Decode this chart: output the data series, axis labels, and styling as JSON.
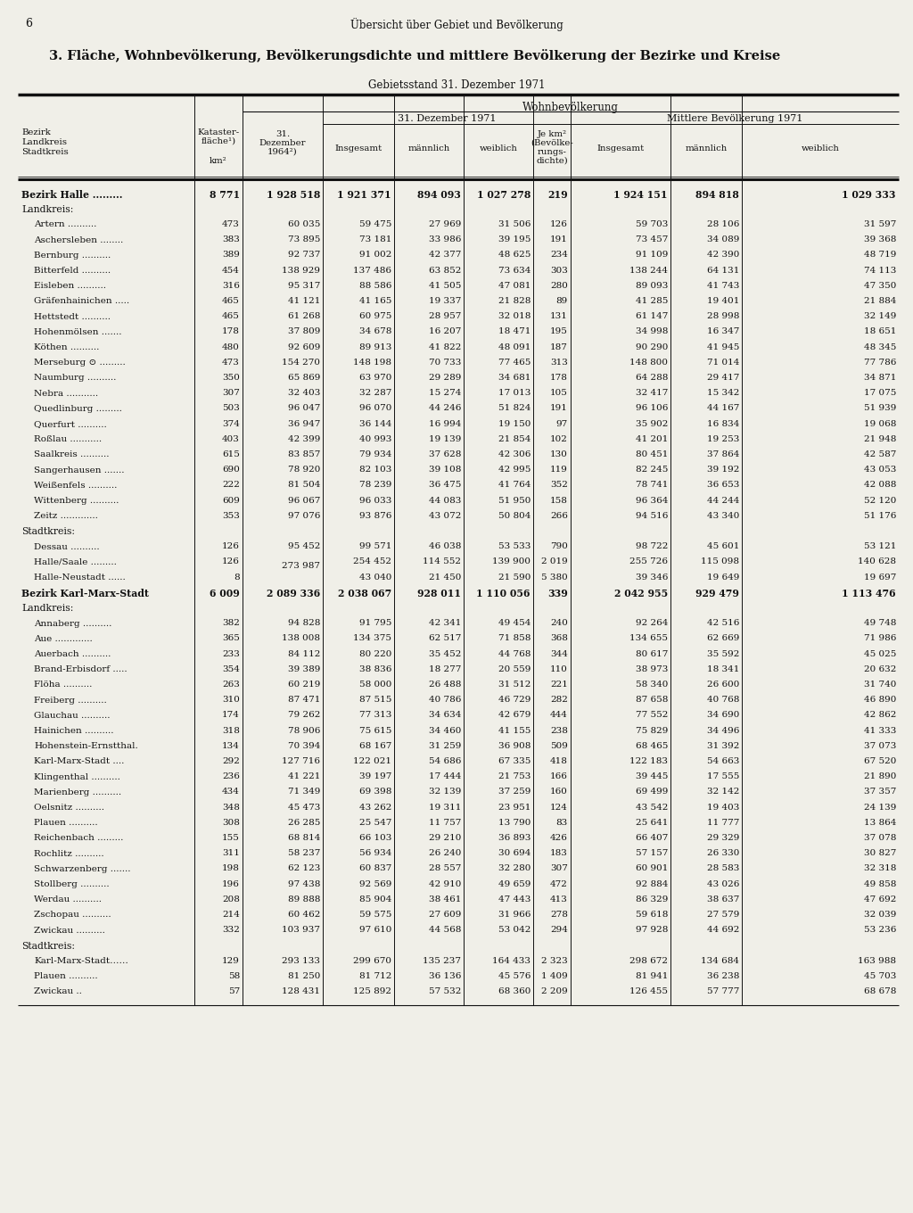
{
  "page_number": "6",
  "header": "Übersicht über Gebiet und Bevölkerung",
  "title": "3. Fläche, Wohnbevölkerung, Bevölkerungsdichte und mittlere Bevölkerung der Bezirke und Kreise",
  "subtitle": "Gebietsstand 31. Dezember 1971",
  "bg_color": "#f0efe8",
  "text_color": "#111111",
  "line_color": "#111111",
  "rows": [
    {
      "name": "Bezirk Halle",
      "dots": " .........",
      "bold": true,
      "km2": "8 771",
      "dez64": "1 928 518",
      "ins71": "1 921 371",
      "m71": "894 093",
      "w71": "1 027 278",
      "dichte": "219",
      "ins_m": "1 924 151",
      "m_m": "894 818",
      "w_m": "1 029 333"
    },
    {
      "name": "Landkreis:",
      "section": true
    },
    {
      "name": "Artern",
      "dots": " ..........",
      "km2": "473",
      "dez64": "60 035",
      "ins71": "59 475",
      "m71": "27 969",
      "w71": "31 506",
      "dichte": "126",
      "ins_m": "59 703",
      "m_m": "28 106",
      "w_m": "31 597"
    },
    {
      "name": "Aschersleben",
      "dots": " ........",
      "km2": "383",
      "dez64": "73 895",
      "ins71": "73 181",
      "m71": "33 986",
      "w71": "39 195",
      "dichte": "191",
      "ins_m": "73 457",
      "m_m": "34 089",
      "w_m": "39 368"
    },
    {
      "name": "Bernburg",
      "dots": " ..........",
      "km2": "389",
      "dez64": "92 737",
      "ins71": "91 002",
      "m71": "42 377",
      "w71": "48 625",
      "dichte": "234",
      "ins_m": "91 109",
      "m_m": "42 390",
      "w_m": "48 719"
    },
    {
      "name": "Bitterfeld",
      "dots": " ..........",
      "km2": "454",
      "dez64": "138 929",
      "ins71": "137 486",
      "m71": "63 852",
      "w71": "73 634",
      "dichte": "303",
      "ins_m": "138 244",
      "m_m": "64 131",
      "w_m": "74 113"
    },
    {
      "name": "Eisleben",
      "dots": " ..........",
      "km2": "316",
      "dez64": "95 317",
      "ins71": "88 586",
      "m71": "41 505",
      "w71": "47 081",
      "dichte": "280",
      "ins_m": "89 093",
      "m_m": "41 743",
      "w_m": "47 350"
    },
    {
      "name": "Gräfenhainichen",
      "dots": " .....",
      "km2": "465",
      "dez64": "41 121",
      "ins71": "41 165",
      "m71": "19 337",
      "w71": "21 828",
      "dichte": "89",
      "ins_m": "41 285",
      "m_m": "19 401",
      "w_m": "21 884"
    },
    {
      "name": "Hettstedt",
      "dots": " ..........",
      "km2": "465",
      "dez64": "61 268",
      "ins71": "60 975",
      "m71": "28 957",
      "w71": "32 018",
      "dichte": "131",
      "ins_m": "61 147",
      "m_m": "28 998",
      "w_m": "32 149"
    },
    {
      "name": "Hohenmölsen",
      "dots": " .......",
      "km2": "178",
      "dez64": "37 809",
      "ins71": "34 678",
      "m71": "16 207",
      "w71": "18 471",
      "dichte": "195",
      "ins_m": "34 998",
      "m_m": "16 347",
      "w_m": "18 651"
    },
    {
      "name": "Köthen",
      "dots": " ..........",
      "km2": "480",
      "dez64": "92 609",
      "ins71": "89 913",
      "m71": "41 822",
      "w71": "48 091",
      "dichte": "187",
      "ins_m": "90 290",
      "m_m": "41 945",
      "w_m": "48 345"
    },
    {
      "name": "Merseburg ⊙",
      "dots": " .........",
      "km2": "473",
      "dez64": "154 270",
      "ins71": "148 198",
      "m71": "70 733",
      "w71": "77 465",
      "dichte": "313",
      "ins_m": "148 800",
      "m_m": "71 014",
      "w_m": "77 786"
    },
    {
      "name": "Naumburg",
      "dots": " ..........",
      "km2": "350",
      "dez64": "65 869",
      "ins71": "63 970",
      "m71": "29 289",
      "w71": "34 681",
      "dichte": "178",
      "ins_m": "64 288",
      "m_m": "29 417",
      "w_m": "34 871"
    },
    {
      "name": "Nebra",
      "dots": " ...........",
      "km2": "307",
      "dez64": "32 403",
      "ins71": "32 287",
      "m71": "15 274",
      "w71": "17 013",
      "dichte": "105",
      "ins_m": "32 417",
      "m_m": "15 342",
      "w_m": "17 075"
    },
    {
      "name": "Quedlinburg",
      "dots": " .........",
      "km2": "503",
      "dez64": "96 047",
      "ins71": "96 070",
      "m71": "44 246",
      "w71": "51 824",
      "dichte": "191",
      "ins_m": "96 106",
      "m_m": "44 167",
      "w_m": "51 939"
    },
    {
      "name": "Querfurt",
      "dots": " ..........",
      "km2": "374",
      "dez64": "36 947",
      "ins71": "36 144",
      "m71": "16 994",
      "w71": "19 150",
      "dichte": "97",
      "ins_m": "35 902",
      "m_m": "16 834",
      "w_m": "19 068"
    },
    {
      "name": "Roßlau",
      "dots": " ...........",
      "km2": "403",
      "dez64": "42 399",
      "ins71": "40 993",
      "m71": "19 139",
      "w71": "21 854",
      "dichte": "102",
      "ins_m": "41 201",
      "m_m": "19 253",
      "w_m": "21 948"
    },
    {
      "name": "Saalkreis",
      "dots": " ..........",
      "km2": "615",
      "dez64": "83 857",
      "ins71": "79 934",
      "m71": "37 628",
      "w71": "42 306",
      "dichte": "130",
      "ins_m": "80 451",
      "m_m": "37 864",
      "w_m": "42 587"
    },
    {
      "name": "Sangerhausen",
      "dots": " .......",
      "km2": "690",
      "dez64": "78 920",
      "ins71": "82 103",
      "m71": "39 108",
      "w71": "42 995",
      "dichte": "119",
      "ins_m": "82 245",
      "m_m": "39 192",
      "w_m": "43 053"
    },
    {
      "name": "Weißenfels",
      "dots": " ..........",
      "km2": "222",
      "dez64": "81 504",
      "ins71": "78 239",
      "m71": "36 475",
      "w71": "41 764",
      "dichte": "352",
      "ins_m": "78 741",
      "m_m": "36 653",
      "w_m": "42 088"
    },
    {
      "name": "Wittenberg",
      "dots": " ..........",
      "km2": "609",
      "dez64": "96 067",
      "ins71": "96 033",
      "m71": "44 083",
      "w71": "51 950",
      "dichte": "158",
      "ins_m": "96 364",
      "m_m": "44 244",
      "w_m": "52 120"
    },
    {
      "name": "Zeitz",
      "dots": " .............",
      "km2": "353",
      "dez64": "97 076",
      "ins71": "93 876",
      "m71": "43 072",
      "w71": "50 804",
      "dichte": "266",
      "ins_m": "94 516",
      "m_m": "43 340",
      "w_m": "51 176"
    },
    {
      "name": "Stadtkreis:",
      "section": true
    },
    {
      "name": "Dessau",
      "dots": " ..........",
      "km2": "126",
      "dez64": "95 452",
      "ins71": "99 571",
      "m71": "46 038",
      "w71": "53 533",
      "dichte": "790",
      "ins_m": "98 722",
      "m_m": "45 601",
      "w_m": "53 121"
    },
    {
      "name": "Halle/Saale",
      "dots": " .........",
      "km2": "126",
      "dez64": "",
      "ins71": "254 452",
      "m71": "114 552",
      "w71": "139 900",
      "dichte": "2 019",
      "ins_m": "255 726",
      "m_m": "115 098",
      "w_m": "140 628",
      "dez64_special": "273 987"
    },
    {
      "name": "Halle-Neustadt",
      "dots": " ......",
      "km2": "8",
      "dez64": "",
      "ins71": "43 040",
      "m71": "21 450",
      "w71": "21 590",
      "dichte": "5 380",
      "ins_m": "39 346",
      "m_m": "19 649",
      "w_m": "19 697"
    },
    {
      "name": "Bezirk Karl-Marx-Stadt",
      "dots": "",
      "bold": true,
      "km2": "6 009",
      "dez64": "2 089 336",
      "ins71": "2 038 067",
      "m71": "928 011",
      "w71": "1 110 056",
      "dichte": "339",
      "ins_m": "2 042 955",
      "m_m": "929 479",
      "w_m": "1 113 476"
    },
    {
      "name": "Landkreis:",
      "section": true
    },
    {
      "name": "Annaberg",
      "dots": " ..........",
      "km2": "382",
      "dez64": "94 828",
      "ins71": "91 795",
      "m71": "42 341",
      "w71": "49 454",
      "dichte": "240",
      "ins_m": "92 264",
      "m_m": "42 516",
      "w_m": "49 748"
    },
    {
      "name": "Aue",
      "dots": " .............",
      "km2": "365",
      "dez64": "138 008",
      "ins71": "134 375",
      "m71": "62 517",
      "w71": "71 858",
      "dichte": "368",
      "ins_m": "134 655",
      "m_m": "62 669",
      "w_m": "71 986"
    },
    {
      "name": "Auerbach",
      "dots": " ..........",
      "km2": "233",
      "dez64": "84 112",
      "ins71": "80 220",
      "m71": "35 452",
      "w71": "44 768",
      "dichte": "344",
      "ins_m": "80 617",
      "m_m": "35 592",
      "w_m": "45 025"
    },
    {
      "name": "Brand-Erbisdorf",
      "dots": " .....",
      "km2": "354",
      "dez64": "39 389",
      "ins71": "38 836",
      "m71": "18 277",
      "w71": "20 559",
      "dichte": "110",
      "ins_m": "38 973",
      "m_m": "18 341",
      "w_m": "20 632"
    },
    {
      "name": "Flöha",
      "dots": " ..........",
      "km2": "263",
      "dez64": "60 219",
      "ins71": "58 000",
      "m71": "26 488",
      "w71": "31 512",
      "dichte": "221",
      "ins_m": "58 340",
      "m_m": "26 600",
      "w_m": "31 740"
    },
    {
      "name": "Freiberg",
      "dots": " ..........",
      "km2": "310",
      "dez64": "87 471",
      "ins71": "87 515",
      "m71": "40 786",
      "w71": "46 729",
      "dichte": "282",
      "ins_m": "87 658",
      "m_m": "40 768",
      "w_m": "46 890"
    },
    {
      "name": "Glauchau",
      "dots": " ..........",
      "km2": "174",
      "dez64": "79 262",
      "ins71": "77 313",
      "m71": "34 634",
      "w71": "42 679",
      "dichte": "444",
      "ins_m": "77 552",
      "m_m": "34 690",
      "w_m": "42 862"
    },
    {
      "name": "Hainichen",
      "dots": " ..........",
      "km2": "318",
      "dez64": "78 906",
      "ins71": "75 615",
      "m71": "34 460",
      "w71": "41 155",
      "dichte": "238",
      "ins_m": "75 829",
      "m_m": "34 496",
      "w_m": "41 333"
    },
    {
      "name": "Hohenstein-Ernstthal.",
      "dots": "",
      "km2": "134",
      "dez64": "70 394",
      "ins71": "68 167",
      "m71": "31 259",
      "w71": "36 908",
      "dichte": "509",
      "ins_m": "68 465",
      "m_m": "31 392",
      "w_m": "37 073"
    },
    {
      "name": "Karl-Marx-Stadt",
      "dots": " ....",
      "km2": "292",
      "dez64": "127 716",
      "ins71": "122 021",
      "m71": "54 686",
      "w71": "67 335",
      "dichte": "418",
      "ins_m": "122 183",
      "m_m": "54 663",
      "w_m": "67 520"
    },
    {
      "name": "Klingenthal",
      "dots": " ..........",
      "km2": "236",
      "dez64": "41 221",
      "ins71": "39 197",
      "m71": "17 444",
      "w71": "21 753",
      "dichte": "166",
      "ins_m": "39 445",
      "m_m": "17 555",
      "w_m": "21 890"
    },
    {
      "name": "Marienberg",
      "dots": " ..........",
      "km2": "434",
      "dez64": "71 349",
      "ins71": "69 398",
      "m71": "32 139",
      "w71": "37 259",
      "dichte": "160",
      "ins_m": "69 499",
      "m_m": "32 142",
      "w_m": "37 357"
    },
    {
      "name": "Oelsnitz",
      "dots": " ..........",
      "km2": "348",
      "dez64": "45 473",
      "ins71": "43 262",
      "m71": "19 311",
      "w71": "23 951",
      "dichte": "124",
      "ins_m": "43 542",
      "m_m": "19 403",
      "w_m": "24 139"
    },
    {
      "name": "Plauen",
      "dots": " ..........",
      "km2": "308",
      "dez64": "26 285",
      "ins71": "25 547",
      "m71": "11 757",
      "w71": "13 790",
      "dichte": "83",
      "ins_m": "25 641",
      "m_m": "11 777",
      "w_m": "13 864"
    },
    {
      "name": "Reichenbach",
      "dots": " .........",
      "km2": "155",
      "dez64": "68 814",
      "ins71": "66 103",
      "m71": "29 210",
      "w71": "36 893",
      "dichte": "426",
      "ins_m": "66 407",
      "m_m": "29 329",
      "w_m": "37 078"
    },
    {
      "name": "Rochlitz",
      "dots": " ..........",
      "km2": "311",
      "dez64": "58 237",
      "ins71": "56 934",
      "m71": "26 240",
      "w71": "30 694",
      "dichte": "183",
      "ins_m": "57 157",
      "m_m": "26 330",
      "w_m": "30 827"
    },
    {
      "name": "Schwarzenberg",
      "dots": " .......",
      "km2": "198",
      "dez64": "62 123",
      "ins71": "60 837",
      "m71": "28 557",
      "w71": "32 280",
      "dichte": "307",
      "ins_m": "60 901",
      "m_m": "28 583",
      "w_m": "32 318"
    },
    {
      "name": "Stollberg",
      "dots": " ..........",
      "km2": "196",
      "dez64": "97 438",
      "ins71": "92 569",
      "m71": "42 910",
      "w71": "49 659",
      "dichte": "472",
      "ins_m": "92 884",
      "m_m": "43 026",
      "w_m": "49 858"
    },
    {
      "name": "Werdau",
      "dots": " ..........",
      "km2": "208",
      "dez64": "89 888",
      "ins71": "85 904",
      "m71": "38 461",
      "w71": "47 443",
      "dichte": "413",
      "ins_m": "86 329",
      "m_m": "38 637",
      "w_m": "47 692"
    },
    {
      "name": "Zschopau",
      "dots": " ..........",
      "km2": "214",
      "dez64": "60 462",
      "ins71": "59 575",
      "m71": "27 609",
      "w71": "31 966",
      "dichte": "278",
      "ins_m": "59 618",
      "m_m": "27 579",
      "w_m": "32 039"
    },
    {
      "name": "Zwickau",
      "dots": " ..........",
      "km2": "332",
      "dez64": "103 937",
      "ins71": "97 610",
      "m71": "44 568",
      "w71": "53 042",
      "dichte": "294",
      "ins_m": "97 928",
      "m_m": "44 692",
      "w_m": "53 236"
    },
    {
      "name": "Stadtkreis:",
      "section": true
    },
    {
      "name": "Karl-Marx-Stadt……",
      "dots": "",
      "km2": "129",
      "dez64": "293 133",
      "ins71": "299 670",
      "m71": "135 237",
      "w71": "164 433",
      "dichte": "2 323",
      "ins_m": "298 672",
      "m_m": "134 684",
      "w_m": "163 988",
      "dot_prefix": true
    },
    {
      "name": "Plauen",
      "dots": " ..........",
      "km2": "58",
      "dez64": "81 250",
      "ins71": "81 712",
      "m71": "36 136",
      "w71": "45 576",
      "dichte": "1 409",
      "ins_m": "81 941",
      "m_m": "36 238",
      "w_m": "45 703"
    },
    {
      "name": "Zwickau",
      "dots": " ..",
      "km2": "57",
      "dez64": "128 431",
      "ins71": "125 892",
      "m71": "57 532",
      "w71": "68 360",
      "dichte": "2 209",
      "ins_m": "126 455",
      "m_m": "57 777",
      "w_m": "68 678"
    }
  ]
}
